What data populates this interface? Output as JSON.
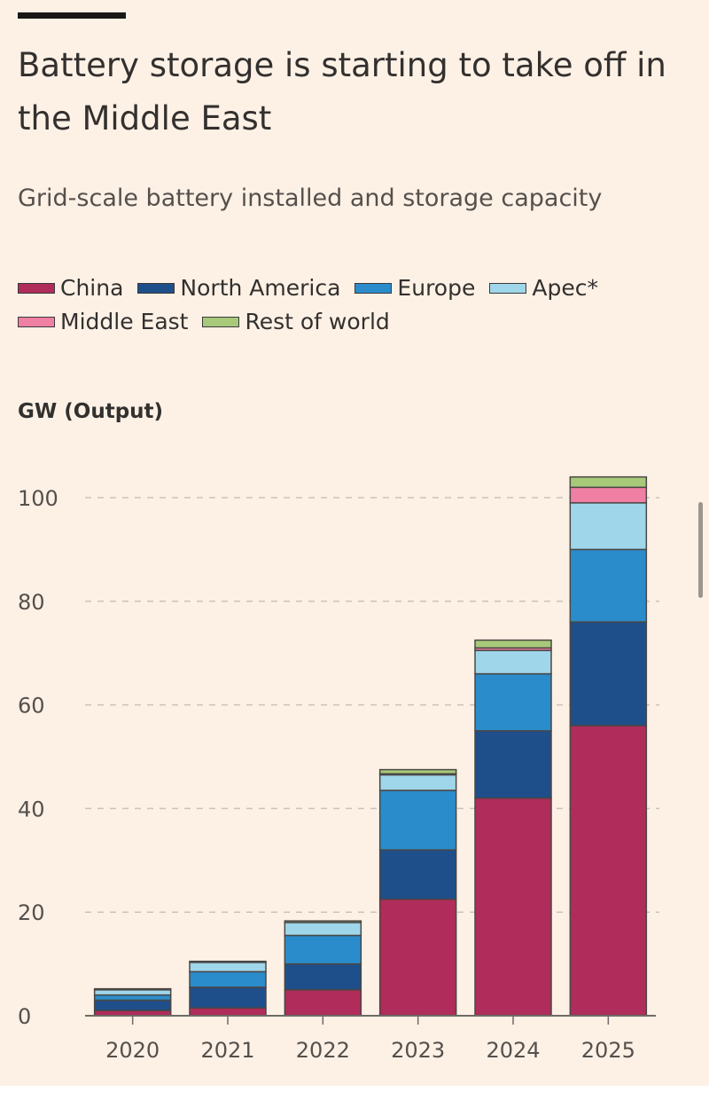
{
  "header": {
    "title": "Battery storage is starting to take off in the Middle East",
    "subtitle": "Grid-scale battery installed and storage capacity"
  },
  "legend": {
    "rows": [
      [
        {
          "label": "China",
          "color": "#b02c5a"
        },
        {
          "label": "North America",
          "color": "#1f4f8a"
        },
        {
          "label": "Europe",
          "color": "#2b8ccc"
        },
        {
          "label": "Apec*",
          "color": "#9fd6ea"
        }
      ],
      [
        {
          "label": "Middle East",
          "color": "#ef7fa3"
        },
        {
          "label": "Rest of world",
          "color": "#a8c97a"
        }
      ]
    ]
  },
  "chart_data": {
    "type": "bar",
    "stacked": true,
    "ylabel": "GW (Output)",
    "ylim": [
      0,
      105
    ],
    "yticks": [
      0,
      20,
      40,
      60,
      80,
      100
    ],
    "grid": true,
    "legend_position": "top",
    "categories": [
      "2020",
      "2021",
      "2022",
      "2023",
      "2024",
      "2025"
    ],
    "series": [
      {
        "name": "China",
        "color": "#b02c5a",
        "values": [
          1,
          1.5,
          5,
          22.5,
          42,
          56
        ]
      },
      {
        "name": "North America",
        "color": "#1f4f8a",
        "values": [
          2,
          4,
          5,
          9.5,
          13,
          20
        ]
      },
      {
        "name": "Europe",
        "color": "#2b8ccc",
        "values": [
          1,
          3,
          5.5,
          11.5,
          11,
          14
        ]
      },
      {
        "name": "Apec*",
        "color": "#9fd6ea",
        "values": [
          1,
          1.8,
          2.5,
          3,
          4.5,
          9
        ]
      },
      {
        "name": "Middle East",
        "color": "#ef7fa3",
        "values": [
          0,
          0,
          0,
          0.2,
          0.5,
          3
        ]
      },
      {
        "name": "Rest of world",
        "color": "#a8c97a",
        "values": [
          0.2,
          0.2,
          0.3,
          0.8,
          1.5,
          2
        ]
      }
    ]
  }
}
